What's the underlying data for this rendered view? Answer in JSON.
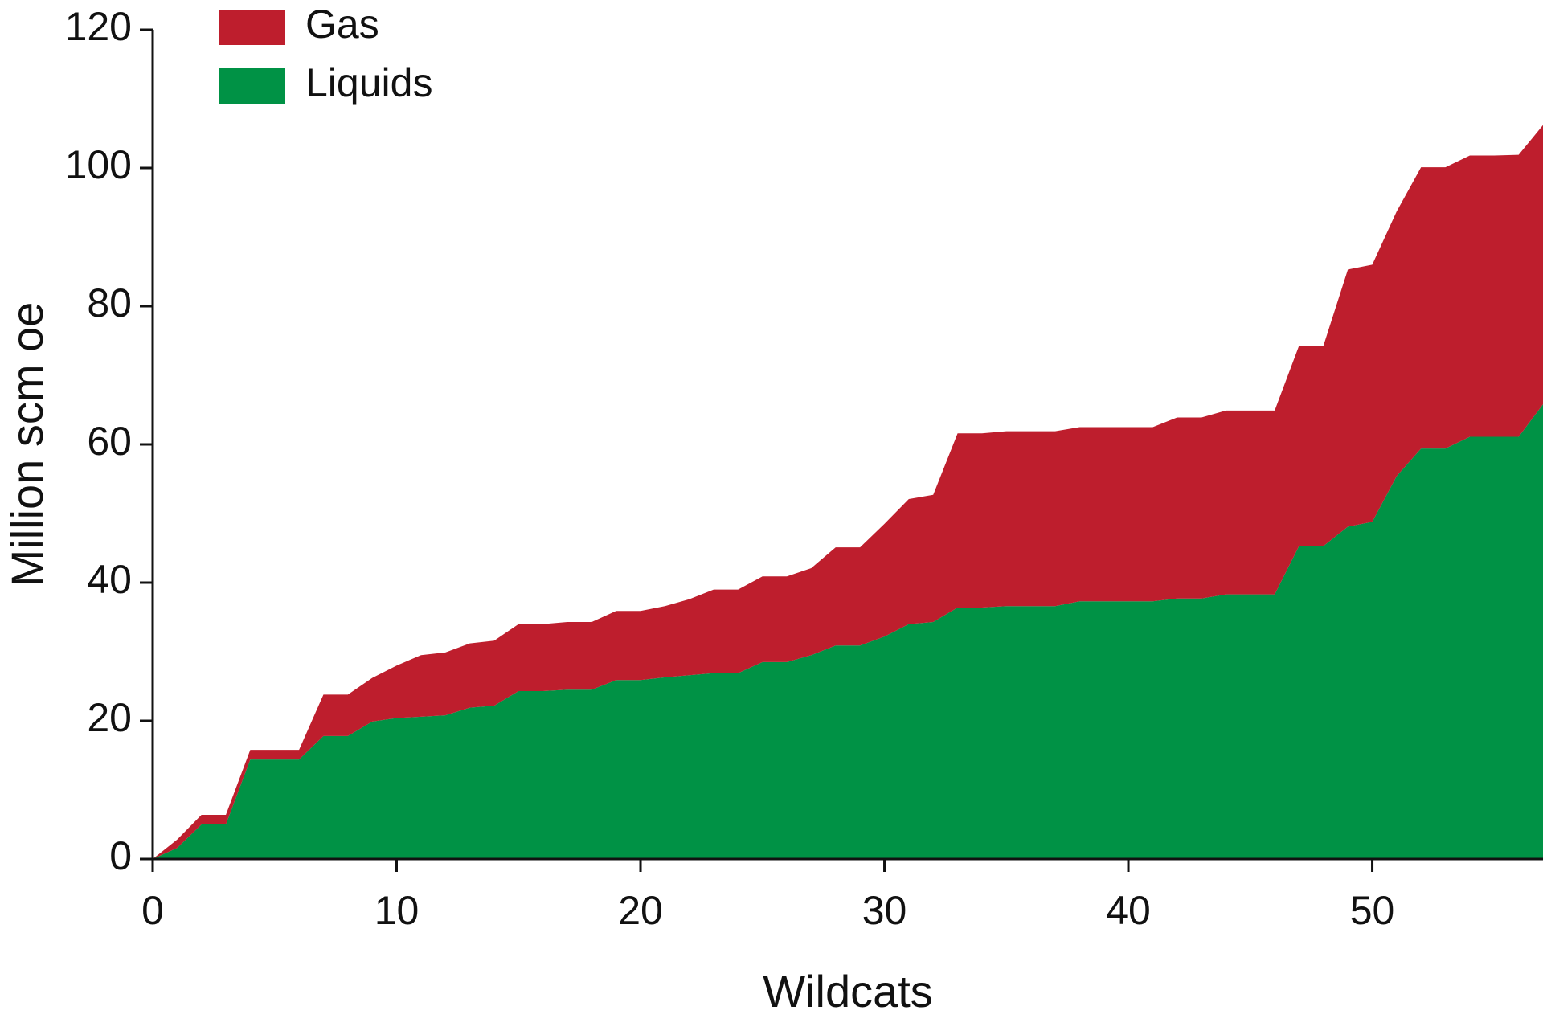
{
  "chart_data": {
    "type": "stacked_area",
    "x_label": "Wildcats",
    "y_label": "Million scm oe",
    "x": [
      0,
      1,
      2,
      3,
      4,
      5,
      6,
      7,
      8,
      9,
      10,
      11,
      12,
      13,
      14,
      15,
      16,
      17,
      18,
      19,
      20,
      21,
      22,
      23,
      24,
      25,
      26,
      27,
      28,
      29,
      30,
      31,
      32,
      33,
      34,
      35,
      36,
      37,
      38,
      39,
      40,
      41,
      42,
      43,
      44,
      45,
      46,
      47,
      48,
      49,
      50,
      51,
      52,
      53,
      54,
      55,
      56,
      57
    ],
    "series": [
      {
        "name": "Liquids",
        "color": "#009245",
        "values": [
          0,
          1.6,
          5,
          5,
          14.4,
          14.4,
          14.4,
          17.8,
          17.8,
          19.9,
          20.4,
          20.6,
          20.8,
          21.9,
          22.2,
          24.3,
          24.3,
          24.5,
          24.5,
          25.9,
          25.9,
          26.3,
          26.6,
          26.9,
          26.9,
          28.5,
          28.5,
          29.5,
          30.9,
          30.9,
          32.2,
          34,
          34.3,
          36.4,
          36.4,
          36.6,
          36.6,
          36.6,
          37.3,
          37.3,
          37.3,
          37.3,
          37.7,
          37.7,
          38.3,
          38.3,
          38.3,
          45.3,
          45.3,
          48.1,
          48.8,
          55.4,
          59.4,
          59.4,
          61.1,
          61.1,
          61.1,
          65.8
        ]
      },
      {
        "name": "Gas",
        "color": "#be1e2d",
        "values": [
          0,
          1.2,
          1.4,
          1.4,
          1.4,
          1.4,
          1.4,
          6,
          6,
          6.3,
          7.6,
          8.9,
          9.1,
          9.3,
          9.4,
          9.7,
          9.7,
          9.8,
          9.8,
          10,
          10,
          10.3,
          11,
          12.1,
          12.1,
          12.4,
          12.4,
          12.6,
          14.2,
          14.2,
          16.3,
          18.1,
          18.4,
          25.2,
          25.2,
          25.3,
          25.3,
          25.3,
          25.2,
          25.2,
          25.2,
          25.2,
          26.2,
          26.2,
          26.6,
          26.6,
          26.6,
          29,
          29,
          37.2,
          37.2,
          38.3,
          40.7,
          40.7,
          40.7,
          40.7,
          40.8,
          40.4
        ]
      }
    ],
    "xlim": [
      0,
      57
    ],
    "xticks": [
      0,
      10,
      20,
      30,
      40,
      50
    ],
    "ylim": [
      0,
      120
    ],
    "yticks": [
      0,
      20,
      40,
      60,
      80,
      100,
      120
    ],
    "grid": false,
    "legend": "upper left"
  }
}
